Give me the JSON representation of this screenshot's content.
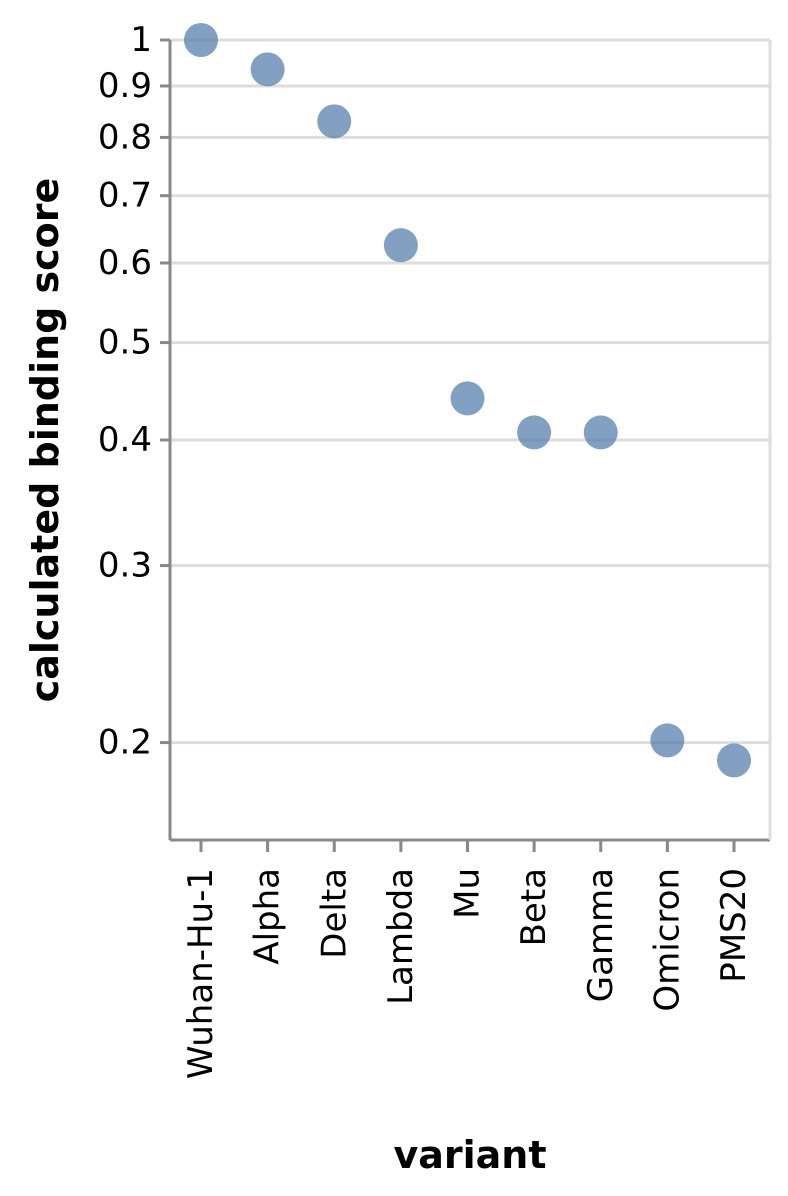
{
  "chart_data": {
    "type": "scatter",
    "title": "",
    "xlabel": "variant",
    "ylabel": "calculated binding score",
    "yscale": "log",
    "ylim": [
      0.16,
      1.0
    ],
    "yticks": [
      1,
      0.9,
      0.8,
      0.7,
      0.6,
      0.5,
      0.4,
      0.3,
      0.2
    ],
    "ytick_labels": [
      "1",
      "0.9",
      "0.8",
      "0.7",
      "0.6",
      "0.5",
      "0.4",
      "0.3",
      "0.2"
    ],
    "grid": true,
    "marker_color": "#4c78a8",
    "categories": [
      "Wuhan-Hu-1",
      "Alpha",
      "Delta",
      "Lambda",
      "Mu",
      "Beta",
      "Gamma",
      "Omicron",
      "PMS20"
    ],
    "values": [
      1.0,
      0.935,
      0.83,
      0.625,
      0.44,
      0.407,
      0.407,
      0.201,
      0.192
    ]
  }
}
